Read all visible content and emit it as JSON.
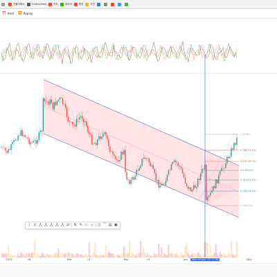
{
  "bookmarks": [
    {
      "label": "",
      "color": "#9e9e9e"
    },
    {
      "label": "선물거래소",
      "color": "#e84a3a"
    },
    {
      "label": "TradingView",
      "color": "#5a5a5a"
    },
    {
      "label": "차트",
      "color": "#e84a3a"
    },
    {
      "label": "네이버",
      "color": "#2db400"
    },
    {
      "label": "증권",
      "color": "#e84a3a"
    },
    {
      "label": "코인",
      "color": "#f0b90b"
    },
    {
      "label": "",
      "color": "#3a78e8"
    },
    {
      "label": "",
      "color": "#888888"
    },
    {
      "label": "",
      "color": "#e84a3a"
    },
    {
      "label": "",
      "color": "#3a9ae8"
    },
    {
      "label": "",
      "color": "#4caf50"
    }
  ],
  "toolbar": {
    "alert_label": "Alert",
    "replay_label": "Replay"
  },
  "drawing_toolbar": {
    "buttons": [
      "∕",
      "∕∕",
      "⋀",
      "⋀",
      "⋀",
      "⋀",
      "⋀",
      "⇄",
      "⇅",
      "✎",
      "▭",
      "◇",
      "◫",
      "⌒",
      "▤",
      "▣"
    ]
  },
  "x_axis": {
    "labels": [
      "2023",
      "16",
      "Feb",
      "13",
      "Mar",
      "13",
      "Apr",
      "17",
      "May"
    ],
    "highlight_label": "Mon 09 Apr '23 17:30"
  },
  "fib_levels": [
    {
      "label": "1 (0.0%)",
      "color": "#9e9e9e"
    },
    {
      "label": "0.786 (21.4%)",
      "color": "#e53935"
    },
    {
      "label": "0.618 (38.2%)",
      "color": "#ef6c00"
    },
    {
      "label": "0.5 (50.0%)",
      "color": "#43a047"
    },
    {
      "label": "0.382 (61.8%)",
      "color": "#26a69a"
    },
    {
      "label": "0.236 (76.4%)",
      "color": "#1e88e5"
    },
    {
      "label": "0 (100.0%)",
      "color": "#9e9e9e"
    }
  ],
  "colors": {
    "up": "#26a69a",
    "down": "#ef5350",
    "channel": "#5c6bc0",
    "channel_fill": "#ffcdd2",
    "crosshair": "#2962ff"
  }
}
